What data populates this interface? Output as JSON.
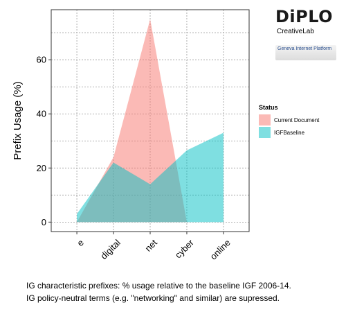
{
  "chart_data": {
    "type": "area",
    "categories": [
      "e",
      "digital",
      "net",
      "cyber",
      "online"
    ],
    "series": [
      {
        "name": "Current Document",
        "values": [
          0,
          24,
          75,
          0,
          null
        ],
        "color": "#F8766D"
      },
      {
        "name": "IGFBaseline",
        "values": [
          3,
          22,
          14,
          26.5,
          33
        ],
        "color": "#00BFC4"
      }
    ],
    "xlabel": "",
    "ylabel": "Prefix Usage (%)",
    "ylim": [
      -3.5,
      78.5
    ],
    "yticks": [
      0,
      20,
      40,
      60
    ],
    "grid": true,
    "legend": {
      "title": "Status",
      "position": "right"
    }
  },
  "logo": {
    "word": "DiPLO",
    "subtitle": "CreativeLab",
    "tagline": "Geneva Internet Platform"
  },
  "captions": [
    "IG characteristic prefixes: % usage relative to the baseline IGF 2006-14.",
    "IG policy-neutral terms (e.g. \"networking\" and similar) are supressed."
  ]
}
